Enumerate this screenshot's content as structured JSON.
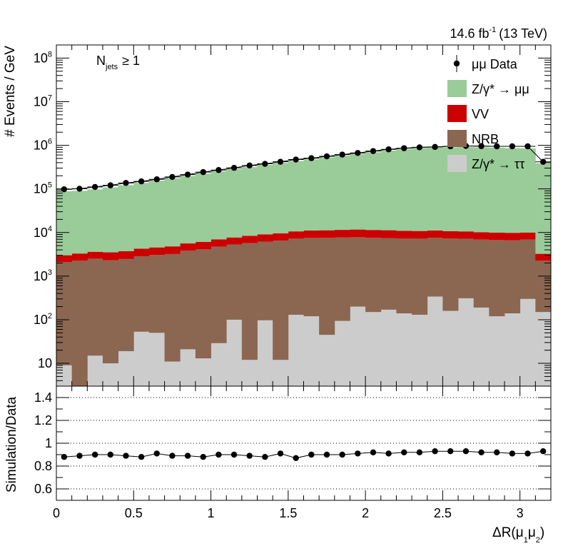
{
  "header": {
    "lumi": "14.6 fb",
    "lumi_exp": "-1",
    "energy": "(13 TeV)"
  },
  "selection": {
    "prefix": "N",
    "sub": "jets",
    "suffix": "≥ 1"
  },
  "colors": {
    "z_mumu": "#99cc99",
    "vv": "#cc0000",
    "nrb": "#8b6651",
    "z_tautau": "#cccccc",
    "data": "#000000"
  },
  "chart_data": [
    {
      "type": "bar",
      "stacked": true,
      "ylog": true,
      "ylabel": "# Events / GeV",
      "ylim": [
        3,
        200000000
      ],
      "xlim": [
        0,
        3.2
      ],
      "x_ticks": [
        "0",
        "0.5",
        "1",
        "1.5",
        "2",
        "2.5",
        "3"
      ],
      "y_ticks": [
        "10",
        "10^2",
        "10^3",
        "10^4",
        "10^5",
        "10^6",
        "10^7",
        "10^8"
      ],
      "bin_edges": [
        0,
        0.1,
        0.2,
        0.3,
        0.4,
        0.5,
        0.6,
        0.7,
        0.8,
        0.9,
        1.0,
        1.1,
        1.2,
        1.3,
        1.4,
        1.5,
        1.6,
        1.7,
        1.8,
        1.9,
        2.0,
        2.1,
        2.2,
        2.3,
        2.4,
        2.5,
        2.6,
        2.7,
        2.8,
        2.9,
        3.0,
        3.1,
        3.2
      ],
      "legend_position": "top-right",
      "legend": [
        {
          "label": "μμ Data",
          "kind": "marker"
        },
        {
          "label": "Z/γ* → μμ",
          "kind": "box",
          "color_key": "z_mumu"
        },
        {
          "label": "VV",
          "kind": "box",
          "color_key": "vv"
        },
        {
          "label": "NRB",
          "kind": "box",
          "color_key": "nrb"
        },
        {
          "label": "Z/γ* → ττ",
          "kind": "box",
          "color_key": "z_tautau"
        }
      ],
      "series": [
        {
          "name": "Z/γ* → ττ",
          "color_key": "z_tautau",
          "values": [
            9,
            2,
            15,
            10,
            19,
            53,
            50,
            11,
            21,
            13,
            29,
            100,
            12,
            97,
            12,
            130,
            120,
            45,
            94,
            200,
            150,
            170,
            140,
            130,
            340,
            160,
            310,
            190,
            120,
            140,
            300,
            150
          ]
        },
        {
          "name": "NRB",
          "color_key": "nrb",
          "values": [
            2100,
            2250,
            2500,
            2300,
            2450,
            2800,
            3000,
            3200,
            3800,
            4100,
            4700,
            5200,
            5700,
            6100,
            6500,
            7100,
            7400,
            7500,
            7600,
            7600,
            7400,
            7300,
            7100,
            7100,
            7200,
            7100,
            6900,
            6700,
            6600,
            6500,
            6600,
            2100
          ]
        },
        {
          "name": "VV",
          "color_key": "vv",
          "values": [
            900,
            1050,
            1100,
            1200,
            1250,
            1400,
            1500,
            1600,
            1800,
            2000,
            2200,
            2400,
            2700,
            2900,
            3100,
            3400,
            3600,
            3700,
            3800,
            3900,
            3900,
            3800,
            3700,
            3600,
            3600,
            3500,
            3400,
            3300,
            3200,
            3200,
            3100,
            1000
          ]
        },
        {
          "name": "Z/γ* → μμ",
          "color_key": "z_mumu",
          "values": [
            85000,
            87000,
            94000,
            105000,
            118000,
            133000,
            150000,
            170000,
            192000,
            218000,
            246000,
            278000,
            308000,
            345000,
            385000,
            425000,
            465000,
            515000,
            565000,
            625000,
            680000,
            745000,
            800000,
            850000,
            880000,
            890000,
            900000,
            885000,
            875000,
            850000,
            840000,
            380000
          ]
        }
      ],
      "data_points": [
        98000,
        101000,
        111000,
        121000,
        137000,
        149000,
        166000,
        188000,
        213000,
        243000,
        271000,
        304000,
        345000,
        376000,
        419000,
        471000,
        507000,
        558000,
        612000,
        668000,
        738000,
        808000,
        858000,
        898000,
        918000,
        948000,
        968000,
        958000,
        948000,
        948000,
        948000,
        418000
      ]
    },
    {
      "type": "scatter",
      "ylabel": "Simulation/Data",
      "xlabel": "ΔR(μ1μ2)",
      "ylim": [
        0.5,
        1.5
      ],
      "xlim": [
        0,
        3.2
      ],
      "y_ticks": [
        "0.6",
        "0.8",
        "1",
        "1.2",
        "1.4"
      ],
      "dotted_gridlines": [
        0.6,
        0.8,
        1.0,
        1.2,
        1.4
      ],
      "x": [
        0.05,
        0.15,
        0.25,
        0.35,
        0.45,
        0.55,
        0.65,
        0.75,
        0.85,
        0.95,
        1.05,
        1.15,
        1.25,
        1.35,
        1.45,
        1.55,
        1.65,
        1.75,
        1.85,
        1.95,
        2.05,
        2.15,
        2.25,
        2.35,
        2.45,
        2.55,
        2.65,
        2.75,
        2.85,
        2.95,
        3.05,
        3.15
      ],
      "values": [
        0.88,
        0.89,
        0.9,
        0.9,
        0.89,
        0.88,
        0.91,
        0.89,
        0.89,
        0.88,
        0.9,
        0.9,
        0.89,
        0.88,
        0.91,
        0.87,
        0.9,
        0.9,
        0.9,
        0.91,
        0.92,
        0.91,
        0.92,
        0.92,
        0.93,
        0.93,
        0.93,
        0.92,
        0.92,
        0.91,
        0.91,
        0.93
      ]
    }
  ]
}
